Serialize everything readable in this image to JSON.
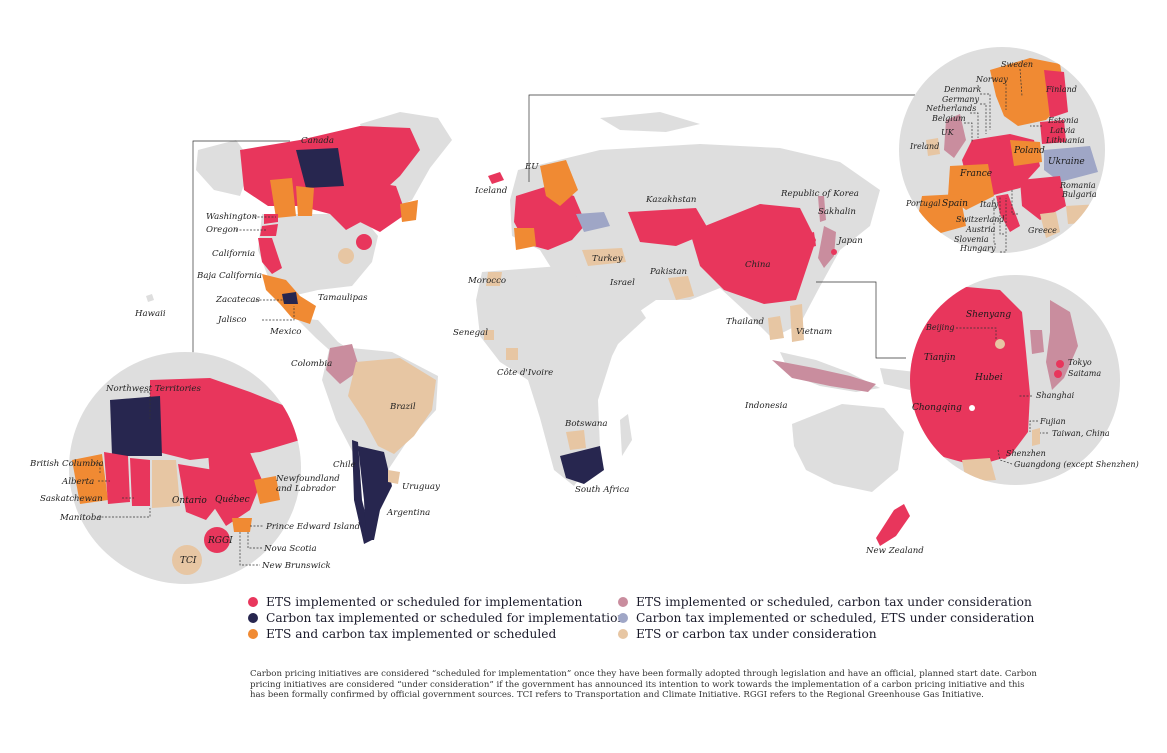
{
  "colors": {
    "ets": "#e8365c",
    "tax": "#27264f",
    "ets_and_tax": "#f08a33",
    "ets_tax_consider": "#c98d9e",
    "tax_ets_consider": "#9fa6c6",
    "consider": "#e7c6a3",
    "none": "#dedede"
  },
  "legend": [
    {
      "key": "ets",
      "label": "ETS implemented or scheduled for implementation"
    },
    {
      "key": "tax",
      "label": "Carbon tax implemented or scheduled for implementation"
    },
    {
      "key": "ets_and_tax",
      "label": "ETS and carbon tax implemented or scheduled"
    },
    {
      "key": "ets_tax_consider",
      "label": "ETS implemented or scheduled, carbon tax under consideration"
    },
    {
      "key": "tax_ets_consider",
      "label": "Carbon tax implemented or scheduled, ETS under consideration"
    },
    {
      "key": "consider",
      "label": "ETS or carbon tax under consideration"
    }
  ],
  "labels": {
    "canada": "Canada",
    "washington": "Washington",
    "oregon": "Oregon",
    "california": "California",
    "baja": "Baja California",
    "zacatecas": "Zacatecas",
    "tamaulipas": "Tamaulipas",
    "jalisco": "Jalisco",
    "mexico": "Mexico",
    "hawaii": "Hawaii",
    "colombia": "Colombia",
    "brazil": "Brazil",
    "chile": "Chile",
    "uruguay": "Uruguay",
    "argentina": "Argentina",
    "iceland": "Iceland",
    "eu": "EU",
    "morocco": "Morocco",
    "senegal": "Senegal",
    "cote": "Côte d'Ivoire",
    "botswana": "Botswana",
    "south_africa": "South Africa",
    "turkey": "Turkey",
    "israel": "Israel",
    "kazakhstan": "Kazakhstan",
    "pakistan": "Pakistan",
    "china": "China",
    "korea": "Republic of Korea",
    "sakhalin": "Sakhalin",
    "japan": "Japan",
    "thailand": "Thailand",
    "vietnam": "Vietnam",
    "indonesia": "Indonesia",
    "new_zealand": "New Zealand"
  },
  "canada_inset": {
    "nwt": "Northwest Territories",
    "bc": "British Columbia",
    "alberta": "Alberta",
    "sask": "Saskatchewan",
    "manitoba": "Manitoba",
    "ontario": "Ontario",
    "quebec": "Québec",
    "nl": "Newfoundland\nand Labrador",
    "nl1": "Newfoundland",
    "nl2": "and Labrador",
    "pei": "Prince Edward Island",
    "ns": "Nova Scotia",
    "nb": "New Brunswick",
    "rggi": "RGGI",
    "tci": "TCI"
  },
  "europe_inset": {
    "sweden": "Sweden",
    "norway": "Norway",
    "finland": "Finland",
    "denmark": "Denmark",
    "germany": "Germany",
    "netherlands": "Netherlands",
    "belgium": "Belgium",
    "uk": "UK",
    "estonia": "Estonia",
    "latvia": "Latvia",
    "lithuania": "Lithuania",
    "ireland": "Ireland",
    "poland": "Poland",
    "ukraine": "Ukraine",
    "france": "France",
    "romania": "Romania",
    "bulgaria": "Bulgaria",
    "portugal": "Portugal",
    "spain": "Spain",
    "italy": "Italy",
    "switzerland": "Switzerland",
    "austria": "Austria",
    "slovenia": "Slovenia",
    "hungary": "Hungary",
    "greece": "Greece"
  },
  "asia_inset": {
    "shenyang": "Shenyang",
    "beijing": "Beijing",
    "tianjin": "Tianjin",
    "hubei": "Hubei",
    "chongqing": "Chongqing",
    "tokyo": "Tokyo",
    "saitama": "Saitama",
    "shanghai": "Shanghai",
    "fujian": "Fujian",
    "taiwan": "Taiwan, China",
    "shenzhen": "Shenzhen",
    "guangdong": "Guangdong (except Shenzhen)"
  },
  "footnote": "Carbon pricing initiatives are considered “scheduled for implementation” once they have been formally adopted through legislation and have an official, planned start date. Carbon pricing initiatives are considered “under consideration” if the government has announced its intention to work towards the implementation of a carbon pricing initiative and this has been formally confirmed by official government sources. TCI refers to Transportation and Climate Initiative. RGGI refers to the Regional Greenhouse Gas Initiative."
}
